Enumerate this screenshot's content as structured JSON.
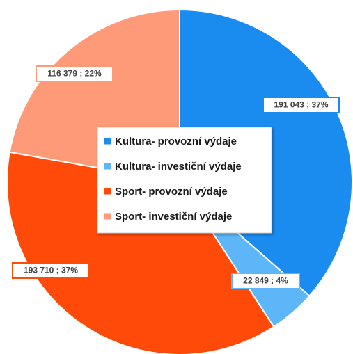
{
  "chart_data": {
    "type": "pie",
    "categories": [
      "Kultura- provozní výdaje",
      "Kultura- investiční výdaje",
      "Sport- provozní výdaje",
      "Sport- investiční výdaje"
    ],
    "values": [
      191043,
      22849,
      193710,
      116379
    ],
    "value_labels": [
      "191 043 ; 37%",
      "22 849 ; 4%",
      "193 710 ; 37%",
      "116 379 ; 22%"
    ],
    "colors": [
      "#1a8cf0",
      "#5cb6f8",
      "#ff4a0a",
      "#ff9a78"
    ],
    "legend": "center"
  }
}
